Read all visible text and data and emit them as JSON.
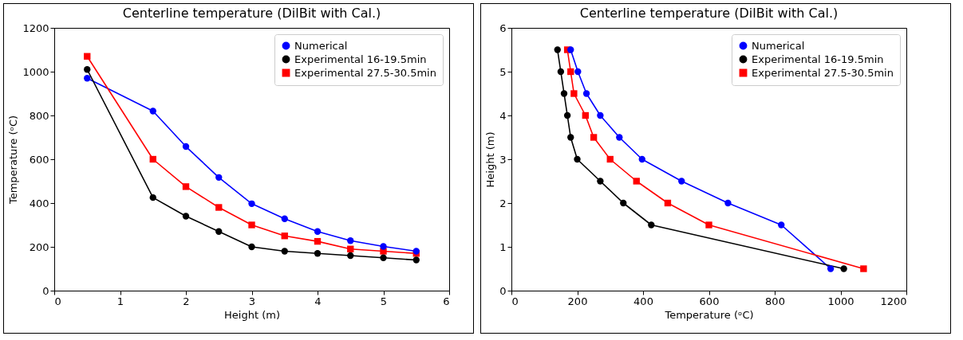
{
  "chart_data": [
    {
      "type": "line",
      "title": "Centerline temperature (DilBit with Cal.)",
      "xlabel": "Height (m)",
      "ylabel": "Temperature (ᵒC)",
      "x": [
        0.5,
        1.5,
        2,
        2.5,
        3,
        3.5,
        4,
        4.5,
        5,
        5.5
      ],
      "xlim": [
        0,
        6
      ],
      "xticks": [
        0,
        1,
        2,
        3,
        4,
        5,
        6
      ],
      "ylim": [
        0,
        1200
      ],
      "yticks": [
        0,
        200,
        400,
        600,
        800,
        1000,
        1200
      ],
      "legend": "top right",
      "grid": false,
      "series": [
        {
          "name": "Numerical",
          "color": "#0000ff",
          "marker": "circle",
          "values": [
            970,
            820,
            658,
            517,
            397,
            328,
            270,
            228,
            202,
            180
          ]
        },
        {
          "name": "Experimental 16-19.5min",
          "color": "#000000",
          "marker": "circle",
          "values": [
            1010,
            425,
            340,
            270,
            200,
            180,
            170,
            160,
            150,
            140
          ]
        },
        {
          "name": "Experimental 27.5-30.5min",
          "color": "#ff0000",
          "marker": "square",
          "values": [
            1070,
            600,
            475,
            380,
            300,
            250,
            225,
            190,
            180,
            170
          ]
        }
      ]
    },
    {
      "type": "line",
      "title": "Centerline temperature (DilBit with Cal.)",
      "xlabel": "Temperature (ᵒC)",
      "ylabel": "Height (m)",
      "xlim": [
        0,
        1200
      ],
      "xticks": [
        0,
        200,
        400,
        600,
        800,
        1000,
        1200
      ],
      "ylim": [
        0,
        6
      ],
      "yticks": [
        0,
        1,
        2,
        3,
        4,
        5,
        6
      ],
      "legend": "top right",
      "grid": false,
      "series": [
        {
          "name": "Numerical",
          "color": "#0000ff",
          "marker": "circle",
          "x": [
            970,
            820,
            658,
            517,
            397,
            328,
            270,
            228,
            202,
            180
          ],
          "values": [
            0.5,
            1.5,
            2,
            2.5,
            3,
            3.5,
            4,
            4.5,
            5,
            5.5
          ]
        },
        {
          "name": "Experimental 16-19.5min",
          "color": "#000000",
          "marker": "circle",
          "x": [
            1010,
            425,
            340,
            270,
            200,
            180,
            170,
            160,
            150,
            140
          ],
          "values": [
            0.5,
            1.5,
            2,
            2.5,
            3,
            3.5,
            4,
            4.5,
            5,
            5.5
          ]
        },
        {
          "name": "Experimental 27.5-30.5min",
          "color": "#ff0000",
          "marker": "square",
          "x": [
            1070,
            600,
            475,
            380,
            300,
            250,
            225,
            190,
            180,
            170
          ],
          "values": [
            0.5,
            1.5,
            2,
            2.5,
            3,
            3.5,
            4,
            4.5,
            5,
            5.5
          ]
        }
      ]
    }
  ]
}
